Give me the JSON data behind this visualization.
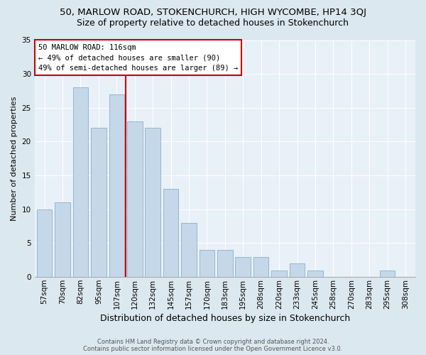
{
  "title1": "50, MARLOW ROAD, STOKENCHURCH, HIGH WYCOMBE, HP14 3QJ",
  "title2": "Size of property relative to detached houses in Stokenchurch",
  "xlabel": "Distribution of detached houses by size in Stokenchurch",
  "ylabel": "Number of detached properties",
  "categories": [
    "57sqm",
    "70sqm",
    "82sqm",
    "95sqm",
    "107sqm",
    "120sqm",
    "132sqm",
    "145sqm",
    "157sqm",
    "170sqm",
    "183sqm",
    "195sqm",
    "208sqm",
    "220sqm",
    "233sqm",
    "245sqm",
    "258sqm",
    "270sqm",
    "283sqm",
    "295sqm",
    "308sqm"
  ],
  "values": [
    10,
    11,
    28,
    22,
    27,
    23,
    22,
    13,
    8,
    4,
    4,
    3,
    3,
    1,
    2,
    1,
    0,
    0,
    0,
    1,
    0
  ],
  "bar_color": "#c5d8ea",
  "bar_edgecolor": "#8bafc8",
  "annotation_text": "50 MARLOW ROAD: 116sqm\n← 49% of detached houses are smaller (90)\n49% of semi-detached houses are larger (89) →",
  "vline_color": "#cc0000",
  "vline_index": 4.5,
  "ylim": [
    0,
    35
  ],
  "yticks": [
    0,
    5,
    10,
    15,
    20,
    25,
    30,
    35
  ],
  "bg_color": "#dce8f0",
  "plot_bg_color": "#e8f0f8",
  "grid_color": "#ffffff",
  "footer": "Contains HM Land Registry data © Crown copyright and database right 2024.\nContains public sector information licensed under the Open Government Licence v3.0.",
  "title1_fontsize": 9.5,
  "title2_fontsize": 9,
  "xlabel_fontsize": 9,
  "ylabel_fontsize": 8,
  "tick_fontsize": 7.5,
  "annot_fontsize": 7.5,
  "footer_fontsize": 6
}
